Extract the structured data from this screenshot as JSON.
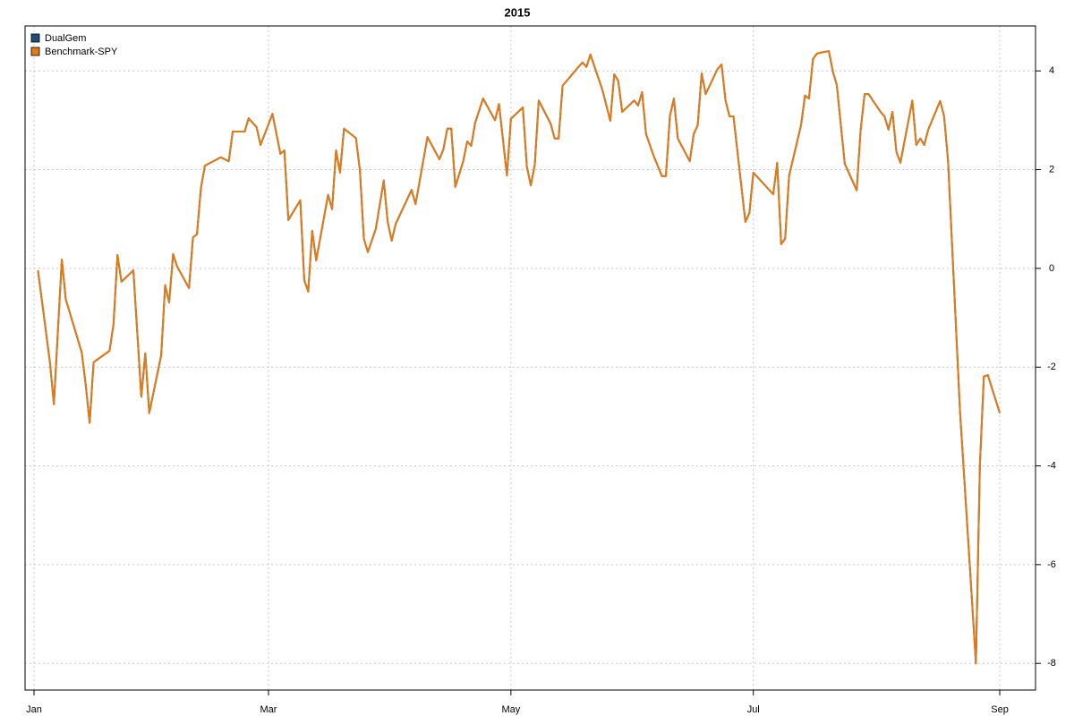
{
  "chart_data": {
    "type": "line",
    "title": "2015",
    "x": [
      1,
      4,
      5,
      7,
      8,
      12,
      13,
      14,
      15,
      19,
      20,
      21,
      22,
      25,
      27,
      28,
      29,
      32,
      33,
      34,
      35,
      36,
      39,
      40,
      41,
      42,
      43,
      47,
      49,
      50,
      53,
      54,
      56,
      57,
      60,
      62,
      63,
      64,
      67,
      68,
      69,
      70,
      71,
      74,
      75,
      76,
      77,
      78,
      81,
      82,
      83,
      84,
      86,
      88,
      89,
      90,
      91,
      95,
      96,
      99,
      102,
      103,
      104,
      105,
      106,
      108,
      109,
      110,
      111,
      113,
      116,
      117,
      119,
      120,
      123,
      124,
      125,
      126,
      127,
      130,
      131,
      132,
      133,
      137,
      138,
      139,
      140,
      143,
      145,
      146,
      147,
      148,
      151,
      152,
      153,
      154,
      156,
      158,
      159,
      160,
      161,
      162,
      165,
      166,
      167,
      168,
      169,
      172,
      173,
      174,
      175,
      176,
      179,
      180,
      181,
      186,
      187,
      188,
      189,
      190,
      193,
      194,
      195,
      196,
      197,
      198,
      200,
      201,
      202,
      204,
      207,
      208,
      209,
      210,
      213,
      214,
      215,
      216,
      217,
      218,
      221,
      222,
      223,
      224,
      225,
      228,
      229,
      230,
      233,
      235,
      237,
      238,
      239,
      240,
      243
    ],
    "series": [
      {
        "name": "DualGem",
        "color": "#1f4e79",
        "values": [
          -0.04,
          -1.9,
          -2.75,
          0.18,
          -0.63,
          -1.7,
          -2.35,
          -3.13,
          -1.9,
          -1.67,
          -1.14,
          0.27,
          -0.27,
          -0.04,
          -2.6,
          -1.72,
          -2.93,
          -1.76,
          -0.34,
          -0.69,
          0.29,
          0.04,
          -0.4,
          0.63,
          0.69,
          1.63,
          2.08,
          2.25,
          2.17,
          2.77,
          2.77,
          3.04,
          2.86,
          2.5,
          3.13,
          2.32,
          2.39,
          0.98,
          1.38,
          -0.24,
          -0.47,
          0.76,
          0.16,
          1.49,
          1.2,
          2.39,
          1.94,
          2.83,
          2.64,
          1.99,
          0.6,
          0.33,
          0.8,
          1.78,
          0.94,
          0.56,
          0.9,
          1.59,
          1.3,
          2.66,
          2.21,
          2.41,
          2.83,
          2.83,
          1.65,
          2.17,
          2.57,
          2.48,
          2.95,
          3.44,
          3.0,
          3.33,
          1.88,
          3.03,
          3.26,
          2.07,
          1.68,
          2.1,
          3.4,
          2.93,
          2.63,
          2.63,
          3.7,
          4.08,
          4.17,
          4.08,
          4.33,
          3.62,
          2.99,
          3.93,
          3.8,
          3.17,
          3.4,
          3.3,
          3.57,
          2.72,
          2.26,
          1.87,
          1.87,
          3.08,
          3.44,
          2.63,
          2.17,
          2.72,
          2.9,
          3.95,
          3.53,
          4.04,
          4.13,
          3.4,
          3.08,
          3.08,
          0.94,
          1.12,
          1.94,
          1.5,
          2.14,
          0.49,
          0.6,
          1.88,
          2.9,
          3.5,
          3.44,
          4.24,
          4.35,
          4.37,
          4.4,
          3.99,
          3.71,
          2.12,
          1.58,
          2.81,
          3.53,
          3.53,
          3.17,
          3.08,
          2.81,
          3.17,
          2.36,
          2.14,
          3.4,
          2.5,
          2.63,
          2.5,
          2.81,
          3.39,
          3.08,
          2.17,
          -2.9,
          -5.43,
          -8.0,
          -3.99,
          -2.19,
          -2.16,
          -2.93
        ]
      },
      {
        "name": "Benchmark-SPY",
        "color": "#e07b18",
        "values": [
          -0.04,
          -1.9,
          -2.75,
          0.18,
          -0.63,
          -1.7,
          -2.35,
          -3.13,
          -1.9,
          -1.67,
          -1.14,
          0.27,
          -0.27,
          -0.04,
          -2.6,
          -1.72,
          -2.93,
          -1.76,
          -0.34,
          -0.69,
          0.29,
          0.04,
          -0.4,
          0.63,
          0.69,
          1.63,
          2.08,
          2.25,
          2.17,
          2.77,
          2.77,
          3.04,
          2.86,
          2.5,
          3.13,
          2.32,
          2.39,
          0.98,
          1.38,
          -0.24,
          -0.47,
          0.76,
          0.16,
          1.49,
          1.2,
          2.39,
          1.94,
          2.83,
          2.64,
          1.99,
          0.6,
          0.33,
          0.8,
          1.78,
          0.94,
          0.56,
          0.9,
          1.59,
          1.3,
          2.66,
          2.21,
          2.41,
          2.83,
          2.83,
          1.65,
          2.17,
          2.57,
          2.48,
          2.95,
          3.44,
          3.0,
          3.33,
          1.88,
          3.03,
          3.26,
          2.07,
          1.68,
          2.1,
          3.4,
          2.93,
          2.63,
          2.63,
          3.7,
          4.08,
          4.17,
          4.08,
          4.33,
          3.62,
          2.99,
          3.93,
          3.8,
          3.17,
          3.4,
          3.3,
          3.57,
          2.72,
          2.26,
          1.87,
          1.87,
          3.08,
          3.44,
          2.63,
          2.17,
          2.72,
          2.9,
          3.95,
          3.53,
          4.04,
          4.13,
          3.4,
          3.08,
          3.08,
          0.94,
          1.12,
          1.94,
          1.5,
          2.14,
          0.49,
          0.6,
          1.88,
          2.9,
          3.5,
          3.44,
          4.24,
          4.35,
          4.37,
          4.4,
          3.99,
          3.71,
          2.12,
          1.58,
          2.81,
          3.53,
          3.53,
          3.17,
          3.08,
          2.81,
          3.17,
          2.36,
          2.14,
          3.4,
          2.5,
          2.63,
          2.5,
          2.81,
          3.39,
          3.08,
          2.17,
          -2.9,
          -5.43,
          -8.0,
          -3.99,
          -2.19,
          -2.16,
          -2.93
        ]
      }
    ],
    "xlim": [
      -2.25,
      252
    ],
    "xticks": [
      {
        "value": 0,
        "label": "Jan"
      },
      {
        "value": 59,
        "label": "Mar"
      },
      {
        "value": 120,
        "label": "May"
      },
      {
        "value": 181,
        "label": "Jul"
      },
      {
        "value": 243,
        "label": "Sep"
      }
    ],
    "ylim": [
      -8.54,
      4.91
    ],
    "yticks": [
      -8,
      -6,
      -4,
      -2,
      0,
      2,
      4
    ],
    "grid": true,
    "legend": "top-left"
  }
}
